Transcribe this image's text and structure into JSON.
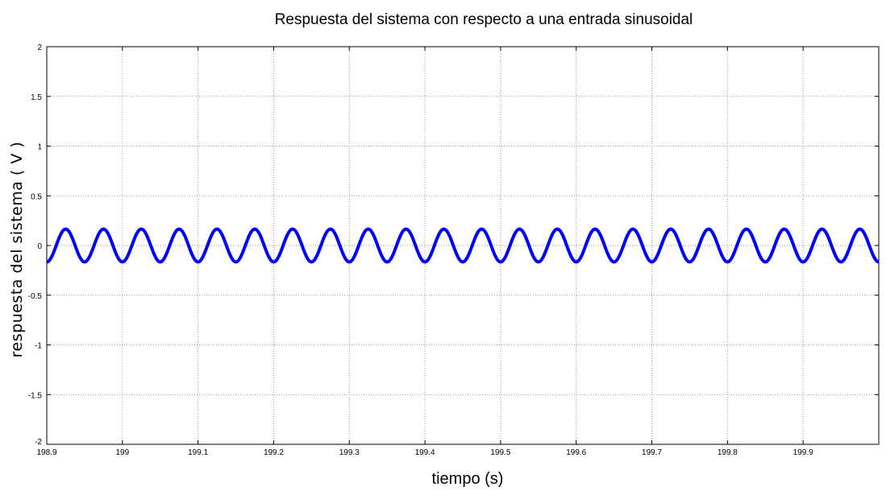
{
  "chart_data": {
    "type": "line",
    "title": "Respuesta del sistema con respecto a una entrada sinusoidal",
    "xlabel": "tiempo (s)",
    "ylabel": "respuesta del sistema ( V )",
    "xlim": [
      198.9,
      200.0
    ],
    "ylim": [
      -2,
      2
    ],
    "xticks": [
      198.9,
      199.0,
      199.1,
      199.2,
      199.3,
      199.4,
      199.5,
      199.6,
      199.7,
      199.8,
      199.9
    ],
    "xtick_labels": [
      "198.9",
      "199",
      "199.1",
      "199.2",
      "199.3",
      "199.4",
      "199.5",
      "199.6",
      "199.7",
      "199.8",
      "199.9"
    ],
    "yticks": [
      -2,
      -1.5,
      -1,
      -0.5,
      0,
      0.5,
      1,
      1.5,
      2
    ],
    "ytick_labels": [
      "-2",
      "-1.5",
      "-1",
      "-0.5",
      "0",
      "0.5",
      "1",
      "1.5",
      "2"
    ],
    "grid": true,
    "series": [
      {
        "color": "#0000ff",
        "function": "sine",
        "amplitude": 0.165,
        "frequency_hz": 20,
        "phase_peak_at": 198.925,
        "x_start": 198.9,
        "x_end": 200.0
      }
    ]
  }
}
